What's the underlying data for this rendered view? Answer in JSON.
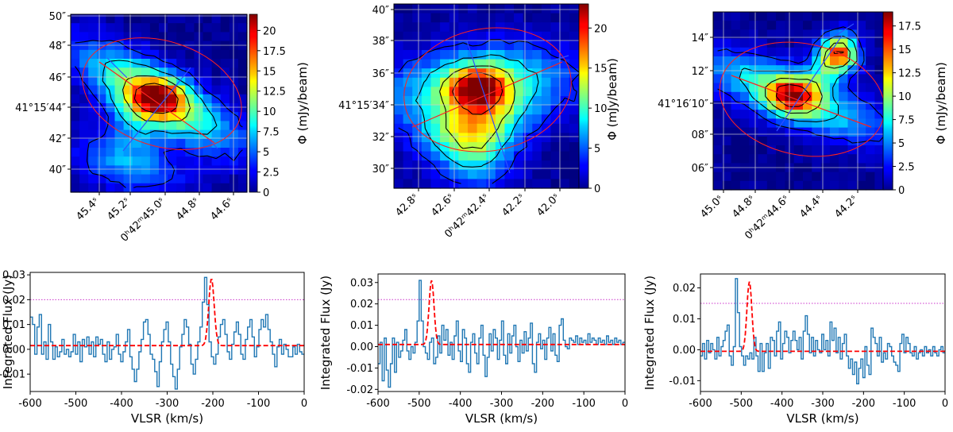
{
  "figure": "Three moment-0 maps with contours and integrated-flux spectra",
  "colors": {
    "map_background": "#00008b",
    "spectrum": "#1f77b4",
    "fit": "#ff0000",
    "threshold": "#cc33cc",
    "contour": "#000000"
  },
  "chart_data": [
    {
      "type": "heatmap",
      "panel": "map-1",
      "colorbar_label": "Φ (mJy/beam)",
      "colorbar_ticks": [
        "0",
        "2.5",
        "5",
        "7.5",
        "10",
        "12.5",
        "15",
        "17.5",
        "20"
      ],
      "vmax": 22,
      "ra_ticks": [
        "45.4ˢ",
        "45.2ˢ",
        "0ʰ42ᵐ45.0ˢ",
        "44.8ˢ",
        "44.6ˢ"
      ],
      "dec_ticks": [
        "50″",
        "48″",
        "46″",
        "41°15′44″",
        "42″",
        "40″"
      ],
      "peak_value": 22,
      "peak_shape": "elongated diagonal emission",
      "orientation": "diagonal"
    },
    {
      "type": "heatmap",
      "panel": "map-2",
      "colorbar_label": "Φ (mJy/beam)",
      "colorbar_ticks": [
        "0",
        "5",
        "10",
        "15",
        "20"
      ],
      "vmax": 23,
      "ra_ticks": [
        "42.8ˢ",
        "42.6ˢ",
        "0ʰ42ᵐ42.4ˢ",
        "42.2ˢ",
        "42.0ˢ"
      ],
      "dec_ticks": [
        "40″",
        "38″",
        "36″",
        "41°15′34″",
        "32″",
        "30″"
      ],
      "peak_value": 23,
      "peak_shape": "broad triangular emission",
      "orientation": "wide"
    },
    {
      "type": "heatmap",
      "panel": "map-3",
      "colorbar_label": "Φ (mJy/beam)",
      "colorbar_ticks": [
        "0",
        "2.5",
        "5",
        "7.5",
        "10",
        "12.5",
        "15",
        "17.5"
      ],
      "vmax": 19,
      "ra_ticks": [
        "45.0ˢ",
        "44.8ˢ",
        "0ʰ42ᵐ44.6ˢ",
        "44.4ˢ",
        "44.2ˢ"
      ],
      "dec_ticks": [
        "14″",
        "12″",
        "41°16′10″",
        "08″",
        "06″"
      ],
      "peak_value": 19,
      "peak_shape": "elongated emission with secondary blob",
      "orientation": "diagonal"
    },
    {
      "type": "line",
      "panel": "spectrum-1",
      "xlabel": "VLSR (km/s)",
      "ylabel": "Integrated Flux (Jy)",
      "xlim": [
        -600,
        0
      ],
      "ylim": [
        -0.017,
        0.031
      ],
      "xticks": [
        "-600",
        "-500",
        "-400",
        "-300",
        "-200",
        "-100",
        "0"
      ],
      "yticks": [
        "-0.01",
        "0.00",
        "0.01",
        "0.02",
        "0.03"
      ],
      "ytick_values": [
        -0.01,
        0.0,
        0.01,
        0.02,
        0.03
      ],
      "threshold": 0.02,
      "fit": {
        "amplitude": 0.027,
        "center": -203,
        "sigma": 6,
        "baseline": 0.0015
      },
      "spectrum": [
        0.013,
        0.01,
        -0.002,
        0.009,
        0.014,
        -0.002,
        0.003,
        -0.004,
        0.01,
        0.003,
        -0.004,
        0.001,
        -0.003,
        -0.001,
        0.004,
        -0.002,
        0.0,
        -0.003,
        -0.001,
        0.006,
        -0.002,
        0.003,
        -0.005,
        0.004,
        0.001,
        0.005,
        -0.002,
        0.003,
        -0.003,
        0.005,
        0.002,
        0.004,
        -0.002,
        -0.005,
        0.003,
        -0.004,
        0.0,
        0.001,
        0.006,
        -0.002,
        -0.005,
        -0.001,
        0.003,
        0.008,
        -0.003,
        -0.008,
        -0.013,
        -0.008,
        -0.001,
        0.004,
        0.011,
        0.012,
        0.006,
        -0.002,
        -0.004,
        -0.009,
        -0.015,
        -0.005,
        0.003,
        0.008,
        0.011,
        0.003,
        -0.006,
        -0.011,
        -0.016,
        -0.008,
        0.001,
        0.006,
        0.012,
        0.009,
        0.002,
        -0.006,
        -0.01,
        -0.004,
        0.003,
        0.009,
        0.019,
        0.029,
        0.018,
        0.003,
        -0.003,
        -0.006,
        -0.002,
        0.005,
        0.01,
        0.012,
        0.006,
        -0.001,
        -0.004,
        0.002,
        0.007,
        0.011,
        0.006,
        -0.002,
        -0.004,
        0.004,
        0.009,
        0.012,
        0.005,
        -0.003,
        0.001,
        0.008,
        0.012,
        0.009,
        0.014,
        0.008,
        0.003,
        -0.002,
        -0.007,
        0.001,
        0.004,
        -0.002,
        0.002,
        0.0,
        -0.003,
        -0.003,
        0.001,
        -0.002,
        0.002,
        -0.001,
        -0.002
      ]
    },
    {
      "type": "line",
      "panel": "spectrum-2",
      "xlabel": "VLSR (km/s)",
      "ylabel": "Integrated Flux (Jy)",
      "xlim": [
        -600,
        0
      ],
      "ylim": [
        -0.021,
        0.034
      ],
      "xticks": [
        "-600",
        "-500",
        "-400",
        "-300",
        "-200",
        "-100",
        "0"
      ],
      "yticks": [
        "-0.02",
        "-0.01",
        "0.00",
        "0.01",
        "0.02",
        "0.03"
      ],
      "ytick_values": [
        -0.02,
        -0.01,
        0.0,
        0.01,
        0.02,
        0.03
      ],
      "threshold": 0.022,
      "fit": {
        "amplitude": 0.03,
        "center": -470,
        "sigma": 6,
        "baseline": 0.001
      },
      "spectrum": [
        -0.008,
        0.002,
        -0.016,
        0.004,
        -0.011,
        -0.019,
        -0.008,
        0.004,
        -0.012,
        0.002,
        -0.005,
        -0.002,
        0.003,
        0.008,
        -0.002,
        -0.006,
        0.0,
        -0.003,
        0.002,
        0.012,
        0.031,
        0.012,
        0.0,
        -0.003,
        -0.006,
        0.002,
        0.004,
        -0.008,
        -0.005,
        0.005,
        -0.003,
        0.01,
        0.003,
        0.008,
        -0.004,
        0.002,
        -0.006,
        0.005,
        0.012,
        -0.002,
        -0.007,
        0.008,
        0.004,
        -0.008,
        -0.012,
        0.002,
        0.006,
        -0.003,
        -0.008,
        0.004,
        0.01,
        -0.004,
        -0.014,
        -0.005,
        0.006,
        -0.002,
        0.008,
        0.004,
        -0.006,
        0.003,
        0.012,
        -0.004,
        -0.008,
        0.006,
        -0.003,
        0.005,
        0.01,
        0.0,
        -0.007,
        0.003,
        -0.003,
        0.007,
        -0.002,
        0.004,
        0.011,
        -0.008,
        -0.012,
        0.002,
        0.006,
        -0.001,
        0.003,
        -0.006,
        0.004,
        0.009,
        -0.002,
        0.006,
        -0.004,
        -0.007,
        0.01,
        0.013,
        0.003,
        0.0,
        -0.001,
        0.004,
        0.003,
        0.002,
        0.005,
        0.001,
        0.004,
        0.002,
        0.003,
        0.001,
        0.006,
        0.002,
        0.004,
        0.003,
        0.001,
        0.004,
        0.002,
        0.003,
        0.001,
        0.005,
        0.002,
        0.003,
        0.001,
        0.004,
        0.002,
        0.003,
        0.001,
        0.002
      ]
    },
    {
      "type": "line",
      "panel": "spectrum-3",
      "xlabel": "VLSR (km/s)",
      "ylabel": "Integrated Flux (Jy)",
      "xlim": [
        -600,
        0
      ],
      "ylim": [
        -0.0135,
        0.0245
      ],
      "xticks": [
        "-600",
        "-500",
        "-400",
        "-300",
        "-200",
        "-100",
        "0"
      ],
      "yticks": [
        "-0.01",
        "0.00",
        "0.01",
        "0.02"
      ],
      "ytick_values": [
        -0.01,
        0.0,
        0.01,
        0.02
      ],
      "threshold": 0.015,
      "fit": {
        "amplitude": 0.0225,
        "center": -480,
        "sigma": 6,
        "baseline": -0.0005
      },
      "spectrum": [
        -0.002,
        0.002,
        -0.003,
        0.003,
        -0.001,
        0.002,
        0.0,
        -0.003,
        0.004,
        -0.002,
        0.001,
        0.003,
        0.006,
        0.008,
        -0.002,
        -0.005,
        0.001,
        0.023,
        0.012,
        0.001,
        -0.002,
        -0.005,
        -0.002,
        -0.003,
        -0.001,
        -0.003,
        0.004,
        -0.002,
        -0.007,
        0.002,
        -0.007,
        -0.001,
        0.002,
        -0.006,
        0.004,
        0.003,
        -0.002,
        0.006,
        0.009,
        -0.003,
        0.002,
        0.006,
        0.004,
        -0.001,
        0.003,
        0.006,
        0.003,
        0.0,
        0.004,
        -0.003,
        0.006,
        0.011,
        0.005,
        -0.001,
        0.004,
        -0.002,
        0.003,
        0.0,
        -0.001,
        0.005,
        0.0,
        0.003,
        -0.002,
        0.009,
        0.003,
        0.007,
        -0.001,
        0.004,
        -0.003,
        0.002,
        0.005,
        -0.002,
        -0.006,
        -0.003,
        -0.008,
        -0.004,
        -0.011,
        -0.006,
        -0.003,
        -0.009,
        0.001,
        -0.005,
        -0.008,
        0.007,
        0.004,
        0.002,
        -0.002,
        0.004,
        -0.004,
        -0.001,
        -0.003,
        0.002,
        0.001,
        -0.002,
        -0.004,
        -0.005,
        -0.007,
        0.002,
        0.005,
        -0.001,
        0.004,
        0.002,
        -0.001,
        -0.002,
        0.001,
        -0.003,
        -0.001,
        0.0,
        -0.002,
        0.001,
        -0.001,
        0.0,
        -0.002,
        0.001,
        -0.001,
        -0.002,
        0.0,
        0.001,
        -0.001
      ]
    }
  ]
}
